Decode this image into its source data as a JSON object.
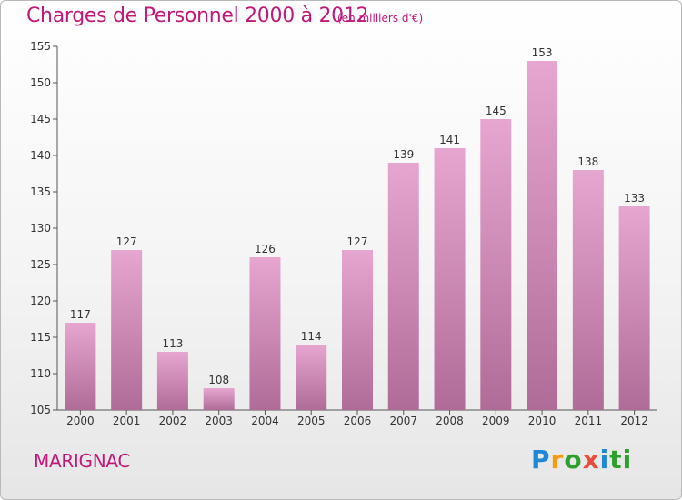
{
  "header": {
    "title": "Charges de Personnel 2000 à 2012",
    "unit": "(en milliers d'€)"
  },
  "footer": {
    "town": "MARIGNAC",
    "logo": [
      "P",
      "r",
      "o",
      "x",
      "i",
      "ti"
    ]
  },
  "colors": {
    "bar_top": "#e6a6d0",
    "bar_bottom": "#b06c98",
    "title": "#c2187a"
  },
  "chart_data": {
    "type": "bar",
    "title": "Charges de Personnel 2000 à 2012",
    "subtitle": "(en milliers d'€)",
    "categories": [
      "2000",
      "2001",
      "2002",
      "2003",
      "2004",
      "2005",
      "2006",
      "2007",
      "2008",
      "2009",
      "2010",
      "2011",
      "2012"
    ],
    "values": [
      117,
      127,
      113,
      108,
      126,
      114,
      127,
      139,
      141,
      145,
      153,
      138,
      133
    ],
    "ylim": [
      105,
      155
    ],
    "yticks": [
      105,
      110,
      115,
      120,
      125,
      130,
      135,
      140,
      145,
      150,
      155
    ],
    "grid": false,
    "legend": "none"
  }
}
